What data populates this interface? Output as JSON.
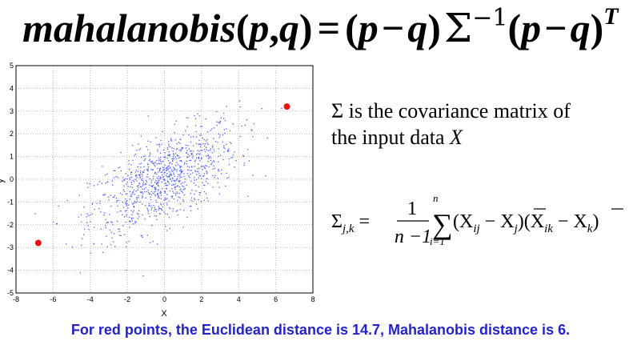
{
  "title": {
    "func_name": "mahalanobis",
    "lparen": "(",
    "p": "p",
    "comma": ",",
    "q": "q",
    "rparen": ")",
    "equals": "=",
    "minus": "−",
    "sigma": "Σ",
    "superscript_inverse": "−1",
    "superscript_T": "T"
  },
  "description": {
    "line1": "Σ is the covariance matrix of",
    "line2_prefix": "the input data ",
    "line2_var": "X"
  },
  "formula": {
    "sigma": "Σ",
    "subscript": "j,k",
    "equals": "=",
    "numerator": "1",
    "denominator": "n −1",
    "sum_top": "n",
    "sum_bottom": "i=1",
    "sum_symbol": "∑",
    "term1": "(X",
    "term1_sub": "ij",
    "term1_minus": " − ",
    "term1_bar": "X",
    "term1_bar_sub": "j",
    "term1_close": ")",
    "term2": "(X",
    "term2_sub": "ik",
    "term2_minus": " − ",
    "term2_bar": "X",
    "term2_bar_sub": "k",
    "term2_close": ")"
  },
  "caption": "For red points, the Euclidean distance is 14.7, Mahalanobis distance is 6.",
  "chart_data": {
    "type": "scatter",
    "xlabel": "X",
    "ylabel": "y",
    "xlim": [
      -8,
      8
    ],
    "ylim": [
      -5,
      5
    ],
    "xticks": [
      -8,
      -6,
      -4,
      -2,
      0,
      2,
      4,
      6,
      8
    ],
    "yticks": [
      -5,
      -4,
      -3,
      -2,
      -1,
      0,
      1,
      2,
      3,
      4,
      5
    ],
    "grid": true,
    "series": [
      {
        "color": "#4a5cff",
        "n_points": 1000,
        "distribution": "bivariate normal, mean [0,0], positive correlation",
        "sample": [
          [
            -2.1,
            -1.4
          ],
          [
            1.2,
            0.8
          ],
          [
            0.4,
            0.9
          ],
          [
            -0.7,
            -0.3
          ],
          [
            2.3,
            1.6
          ],
          [
            -3.1,
            -1.9
          ],
          [
            0.9,
            -0.2
          ],
          [
            1.7,
            2.1
          ],
          [
            -1.4,
            -0.8
          ],
          [
            3.2,
            1.4
          ]
        ]
      },
      {
        "color": "#ee1111",
        "points": [
          [
            6.6,
            3.2
          ],
          [
            -6.8,
            -2.8
          ]
        ]
      }
    ]
  }
}
